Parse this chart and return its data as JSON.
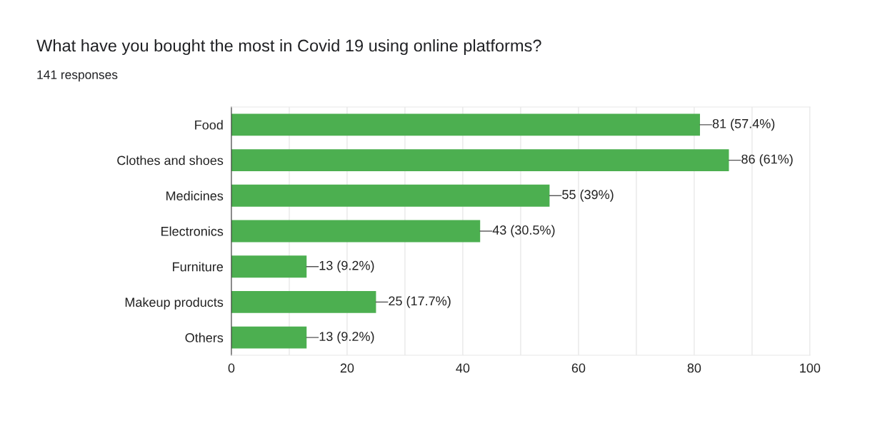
{
  "chart_data": {
    "type": "bar",
    "orientation": "horizontal",
    "title": "What have you bought the most in Covid 19 using online platforms?",
    "subtitle": "141 responses",
    "categories": [
      "Food",
      "Clothes and shoes",
      "Medicines",
      "Electronics",
      "Furniture",
      "Makeup products",
      "Others"
    ],
    "values": [
      81,
      86,
      55,
      43,
      13,
      25,
      13
    ],
    "value_labels": [
      "81 (57.4%)",
      "86 (61%)",
      "55 (39%)",
      "43 (30.5%)",
      "13 (9.2%)",
      "25 (17.7%)",
      "13 (9.2%)"
    ],
    "color": "#4caf50",
    "xlim": [
      0,
      100
    ],
    "xticks": [
      0,
      {
        "value": 10,
        "label": null
      },
      20,
      {
        "value": 30,
        "label": null
      },
      40,
      {
        "value": 50,
        "label": null
      },
      60,
      {
        "value": 70,
        "label": null
      },
      80,
      {
        "value": 90,
        "label": null
      },
      100
    ],
    "grid": "x"
  }
}
